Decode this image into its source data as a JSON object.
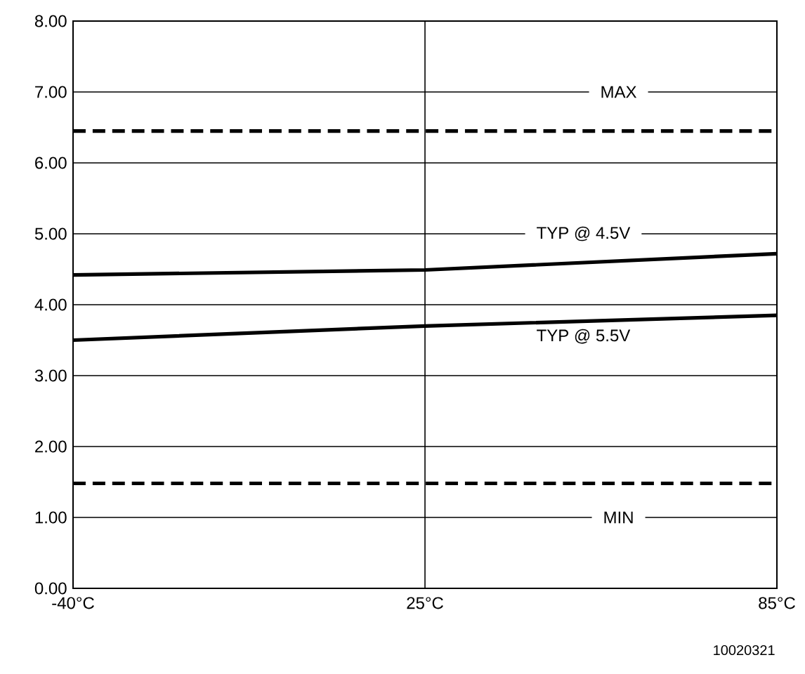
{
  "chart_data": {
    "type": "line",
    "categories": [
      "-40°C",
      "25°C",
      "85°C"
    ],
    "series": [
      {
        "name": "MAX",
        "color": "#000000",
        "line_style": "dashed",
        "values": [
          6.45,
          6.45,
          6.45
        ]
      },
      {
        "name": "TYP @ 4.5V",
        "color": "#000000",
        "line_style": "solid",
        "values": [
          4.42,
          4.49,
          4.72
        ]
      },
      {
        "name": "TYP @ 5.5V",
        "color": "#000000",
        "line_style": "solid",
        "values": [
          3.5,
          3.7,
          3.85
        ]
      },
      {
        "name": "MIN",
        "color": "#000000",
        "line_style": "dashed",
        "values": [
          1.48,
          1.48,
          1.48
        ]
      }
    ],
    "ylim": [
      0,
      8
    ],
    "yticks": [
      {
        "value": 0,
        "label": "0.00"
      },
      {
        "value": 1,
        "label": "1.00"
      },
      {
        "value": 2,
        "label": "2.00"
      },
      {
        "value": 3,
        "label": "3.00"
      },
      {
        "value": 4,
        "label": "4.00"
      },
      {
        "value": 5,
        "label": "5.00"
      },
      {
        "value": 6,
        "label": "6.00"
      },
      {
        "value": 7,
        "label": "7.00"
      },
      {
        "value": 8,
        "label": "8.00"
      }
    ],
    "grid": true,
    "marker": "none",
    "annotations": [
      "10020321"
    ]
  }
}
